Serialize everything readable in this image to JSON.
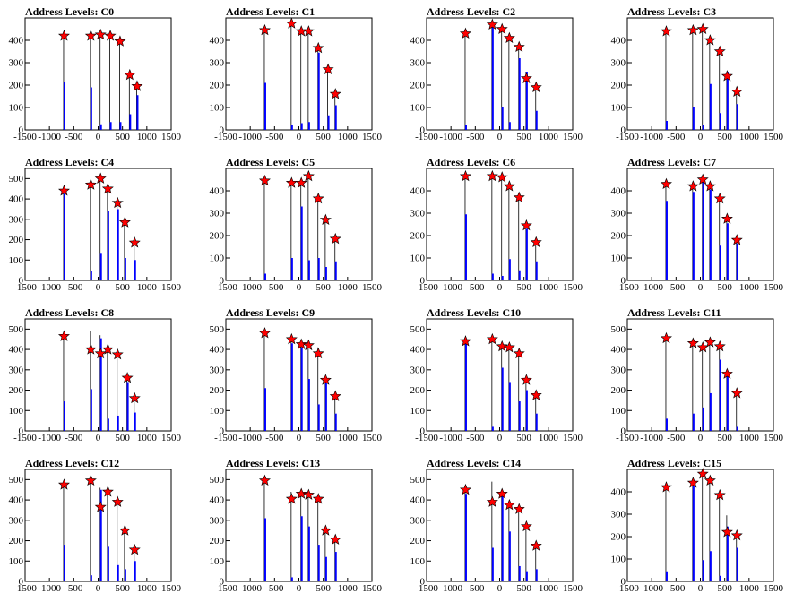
{
  "x_ticks": [
    -1500,
    -1000,
    -500,
    0,
    500,
    1000,
    1500
  ],
  "x_range": [
    -1500,
    1500
  ],
  "colors": {
    "histogram": "#0000ff",
    "marker": "#ff0000",
    "marker_edge": "#000000",
    "frame": "#000000"
  },
  "chart_data": [
    {
      "type": "bar",
      "title": "Address Levels: C0",
      "ylim": [
        0,
        500
      ],
      "y_ticks": [
        0,
        100,
        200,
        300,
        400
      ],
      "x": [
        -700,
        -150,
        50,
        250,
        450,
        650,
        800
      ],
      "values": [
        420,
        420,
        425,
        420,
        395,
        245,
        195
      ],
      "peaks": [
        430,
        440,
        440,
        435,
        405,
        250,
        200
      ],
      "bases": [
        215,
        190,
        25,
        35,
        35,
        70,
        155
      ]
    },
    {
      "type": "bar",
      "title": "Address Levels: C1",
      "ylim": [
        0,
        500
      ],
      "y_ticks": [
        0,
        100,
        200,
        300,
        400
      ],
      "x": [
        -700,
        -150,
        50,
        200,
        400,
        600,
        750
      ],
      "values": [
        445,
        475,
        440,
        440,
        365,
        270,
        160
      ],
      "peaks": [
        455,
        480,
        450,
        450,
        370,
        275,
        165
      ],
      "bases": [
        210,
        20,
        30,
        35,
        345,
        65,
        110
      ]
    },
    {
      "type": "bar",
      "title": "Address Levels: C2",
      "ylim": [
        0,
        500
      ],
      "y_ticks": [
        0,
        100,
        200,
        300,
        400
      ],
      "x": [
        -700,
        -150,
        50,
        200,
        400,
        550,
        750
      ],
      "values": [
        430,
        470,
        450,
        410,
        370,
        230,
        190
      ],
      "peaks": [
        440,
        480,
        460,
        420,
        380,
        260,
        195
      ],
      "bases": [
        20,
        460,
        100,
        35,
        320,
        260,
        85
      ]
    },
    {
      "type": "bar",
      "title": "Address Levels: C3",
      "ylim": [
        0,
        500
      ],
      "y_ticks": [
        0,
        100,
        200,
        300,
        400
      ],
      "x": [
        -700,
        -150,
        50,
        200,
        400,
        550,
        750
      ],
      "values": [
        440,
        445,
        450,
        400,
        350,
        240,
        170
      ],
      "peaks": [
        450,
        455,
        460,
        410,
        360,
        245,
        175
      ],
      "bases": [
        40,
        100,
        20,
        205,
        75,
        260,
        115
      ]
    },
    {
      "type": "bar",
      "title": "Address Levels: C4",
      "ylim": [
        0,
        550
      ],
      "y_ticks": [
        0,
        100,
        200,
        300,
        400,
        500
      ],
      "x": [
        -700,
        -150,
        50,
        200,
        400,
        550,
        750
      ],
      "values": [
        440,
        470,
        500,
        450,
        380,
        285,
        185
      ],
      "peaks": [
        450,
        480,
        510,
        460,
        385,
        290,
        190
      ],
      "bases": [
        425,
        45,
        135,
        340,
        350,
        110,
        100
      ]
    },
    {
      "type": "bar",
      "title": "Address Levels: C5",
      "ylim": [
        0,
        500
      ],
      "y_ticks": [
        0,
        100,
        200,
        300,
        400
      ],
      "x": [
        -700,
        -150,
        50,
        200,
        400,
        550,
        750
      ],
      "values": [
        445,
        435,
        435,
        465,
        365,
        270,
        185
      ],
      "peaks": [
        455,
        445,
        445,
        470,
        375,
        275,
        190
      ],
      "bases": [
        30,
        100,
        330,
        90,
        100,
        60,
        85
      ]
    },
    {
      "type": "bar",
      "title": "Address Levels: C6",
      "ylim": [
        0,
        500
      ],
      "y_ticks": [
        0,
        100,
        200,
        300,
        400
      ],
      "x": [
        -700,
        -150,
        50,
        200,
        400,
        550,
        750
      ],
      "values": [
        465,
        465,
        460,
        420,
        370,
        245,
        170
      ],
      "peaks": [
        475,
        475,
        470,
        430,
        380,
        250,
        175
      ],
      "bases": [
        295,
        30,
        20,
        95,
        45,
        230,
        85
      ]
    },
    {
      "type": "bar",
      "title": "Address Levels: C7",
      "ylim": [
        0,
        500
      ],
      "y_ticks": [
        0,
        100,
        200,
        300,
        400
      ],
      "x": [
        -700,
        -150,
        50,
        200,
        400,
        550,
        750
      ],
      "values": [
        430,
        420,
        450,
        420,
        365,
        275,
        180
      ],
      "peaks": [
        440,
        430,
        460,
        430,
        375,
        280,
        185
      ],
      "bases": [
        355,
        395,
        440,
        405,
        155,
        255,
        165
      ]
    },
    {
      "type": "bar",
      "title": "Address Levels: C8",
      "ylim": [
        0,
        550
      ],
      "y_ticks": [
        0,
        100,
        200,
        300,
        400,
        500
      ],
      "x": [
        -700,
        -150,
        50,
        200,
        400,
        600,
        750
      ],
      "values": [
        465,
        400,
        380,
        400,
        375,
        260,
        160
      ],
      "peaks": [
        475,
        490,
        470,
        410,
        395,
        265,
        165
      ],
      "bases": [
        145,
        205,
        455,
        60,
        75,
        240,
        90
      ]
    },
    {
      "type": "bar",
      "title": "Address Levels: C9",
      "ylim": [
        0,
        550
      ],
      "y_ticks": [
        0,
        100,
        200,
        300,
        400,
        500
      ],
      "x": [
        -700,
        -150,
        50,
        200,
        400,
        550,
        750
      ],
      "values": [
        480,
        450,
        425,
        420,
        380,
        250,
        170
      ],
      "peaks": [
        490,
        460,
        435,
        430,
        410,
        265,
        175
      ],
      "bases": [
        210,
        430,
        410,
        255,
        130,
        240,
        85
      ]
    },
    {
      "type": "bar",
      "title": "Address Levels: C10",
      "ylim": [
        0,
        550
      ],
      "y_ticks": [
        0,
        100,
        200,
        300,
        400,
        500
      ],
      "x": [
        -700,
        -150,
        50,
        200,
        400,
        550,
        750
      ],
      "values": [
        440,
        450,
        415,
        410,
        380,
        250,
        175
      ],
      "peaks": [
        450,
        460,
        420,
        415,
        390,
        255,
        180
      ],
      "bases": [
        430,
        20,
        310,
        240,
        145,
        200,
        85
      ]
    },
    {
      "type": "bar",
      "title": "Address Levels: C11",
      "ylim": [
        0,
        550
      ],
      "y_ticks": [
        0,
        100,
        200,
        300,
        400,
        500
      ],
      "x": [
        -700,
        -150,
        50,
        200,
        400,
        550,
        750
      ],
      "values": [
        455,
        430,
        410,
        435,
        415,
        280,
        185
      ],
      "peaks": [
        465,
        440,
        420,
        440,
        420,
        285,
        190
      ],
      "bases": [
        60,
        85,
        115,
        185,
        350,
        290,
        20
      ]
    },
    {
      "type": "bar",
      "title": "Address Levels: C12",
      "ylim": [
        0,
        550
      ],
      "y_ticks": [
        0,
        100,
        200,
        300,
        400,
        500
      ],
      "x": [
        -700,
        -150,
        50,
        200,
        400,
        550,
        750
      ],
      "values": [
        475,
        495,
        365,
        440,
        390,
        250,
        155
      ],
      "peaks": [
        485,
        500,
        460,
        445,
        395,
        260,
        160
      ],
      "bases": [
        180,
        30,
        450,
        170,
        80,
        60,
        100
      ]
    },
    {
      "type": "bar",
      "title": "Address Levels: C13",
      "ylim": [
        0,
        550
      ],
      "y_ticks": [
        0,
        100,
        200,
        300,
        400,
        500
      ],
      "x": [
        -700,
        -150,
        50,
        200,
        400,
        550,
        750
      ],
      "values": [
        495,
        405,
        430,
        425,
        405,
        250,
        205
      ],
      "peaks": [
        500,
        440,
        440,
        430,
        410,
        255,
        210
      ],
      "bases": [
        310,
        20,
        320,
        270,
        180,
        120,
        145
      ]
    },
    {
      "type": "bar",
      "title": "Address Levels: C14",
      "ylim": [
        0,
        550
      ],
      "y_ticks": [
        0,
        100,
        200,
        300,
        400,
        500
      ],
      "x": [
        -700,
        -150,
        50,
        200,
        400,
        550,
        750
      ],
      "values": [
        450,
        390,
        430,
        375,
        355,
        270,
        175
      ],
      "peaks": [
        460,
        490,
        440,
        380,
        360,
        275,
        180
      ],
      "bases": [
        430,
        165,
        420,
        245,
        75,
        50,
        60
      ]
    },
    {
      "type": "bar",
      "title": "Address Levels: C15",
      "ylim": [
        0,
        500
      ],
      "y_ticks": [
        0,
        100,
        200,
        300,
        400
      ],
      "x": [
        -700,
        -150,
        50,
        200,
        400,
        550,
        750
      ],
      "values": [
        420,
        440,
        480,
        450,
        385,
        220,
        205
      ],
      "peaks": [
        430,
        450,
        490,
        460,
        390,
        295,
        210
      ],
      "bases": [
        45,
        430,
        95,
        135,
        25,
        245,
        150
      ]
    }
  ]
}
